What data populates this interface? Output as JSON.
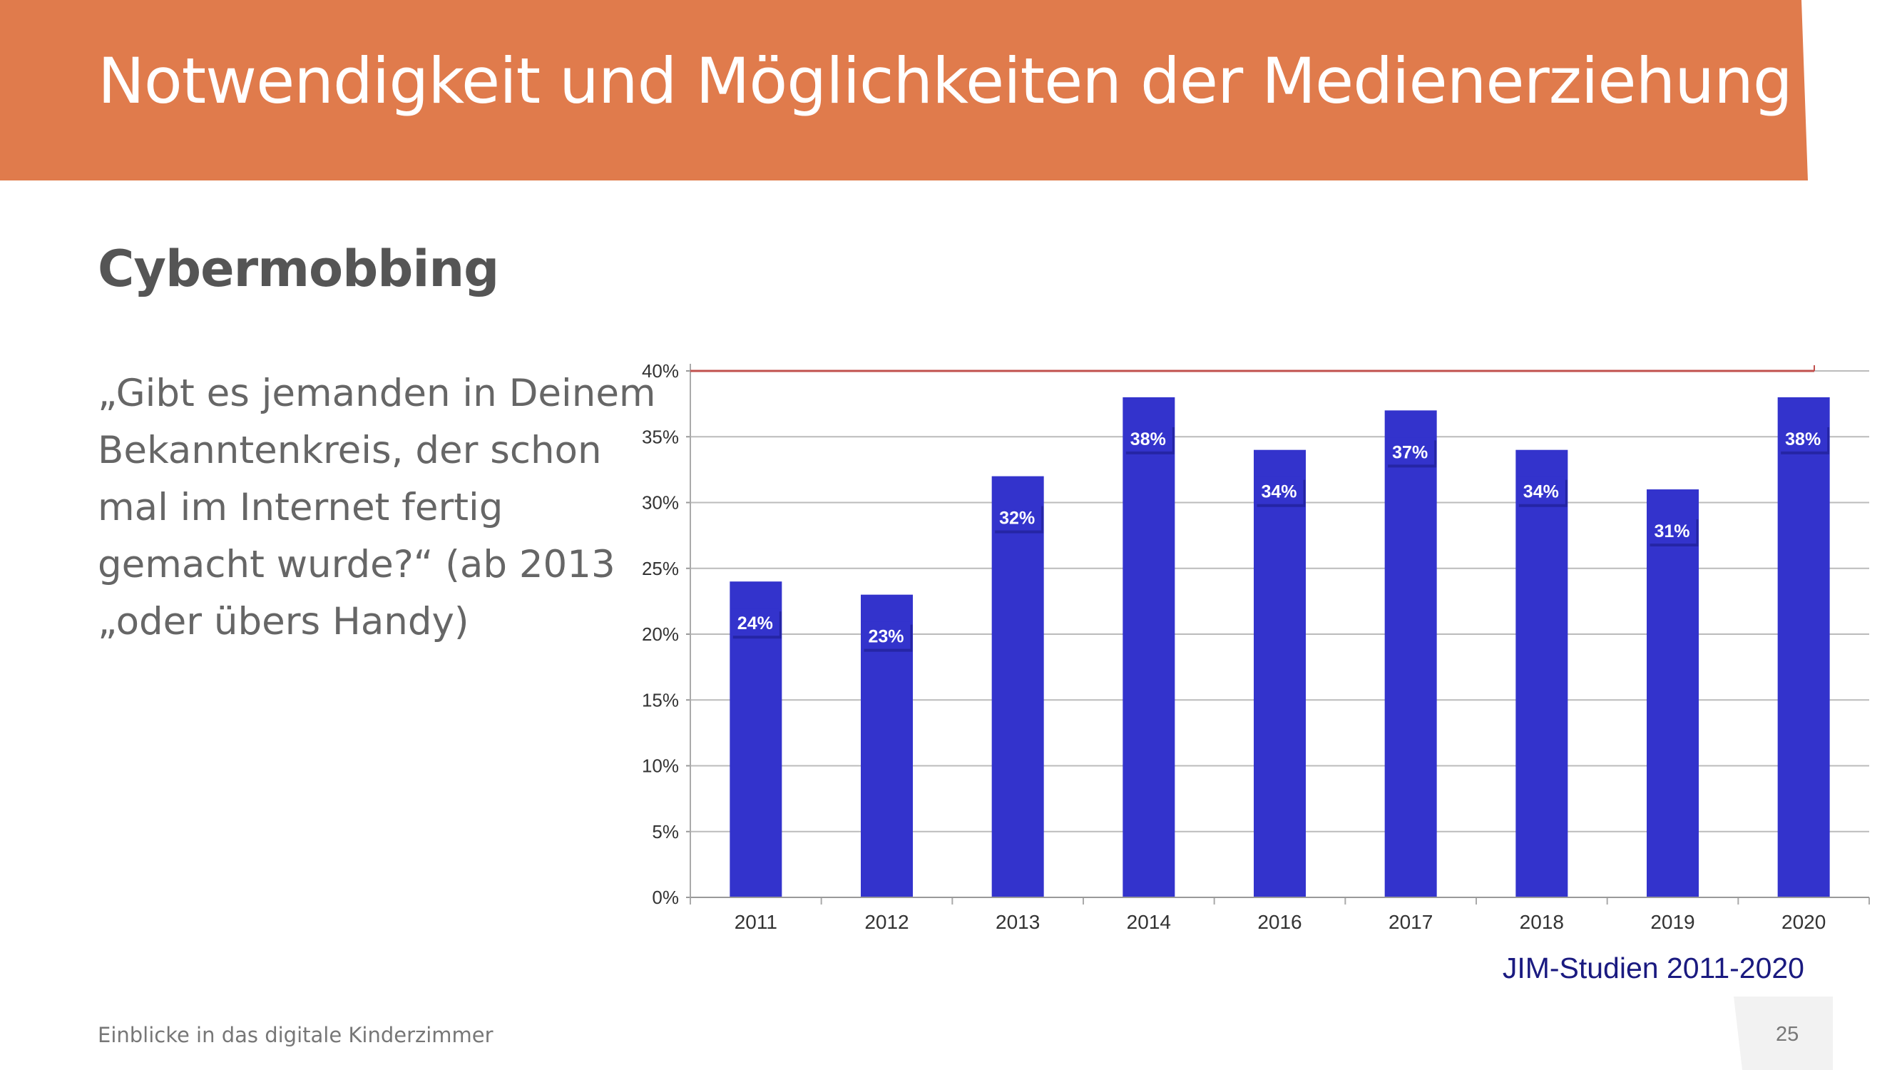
{
  "header": {
    "title": "Notwendigkeit und Möglichkeiten der Medienerziehung"
  },
  "section": {
    "title": "Cybermobbing"
  },
  "quote": {
    "lines": [
      "„Gibt es jemanden in Deinem",
      "Bekanntenkreis, der schon",
      "mal im Internet fertig",
      "gemacht wurde?“ (ab 2013",
      "„oder übers Handy)"
    ]
  },
  "chart_data": {
    "type": "bar",
    "categories": [
      "2011",
      "2012",
      "2013",
      "2014",
      "2016",
      "2017",
      "2018",
      "2019",
      "2020"
    ],
    "values": [
      24,
      23,
      32,
      38,
      34,
      37,
      34,
      31,
      38
    ],
    "data_labels": [
      "24%",
      "23%",
      "32%",
      "38%",
      "34%",
      "37%",
      "34%",
      "31%",
      "38%"
    ],
    "ylim": [
      0,
      40
    ],
    "yticks": [
      "0%",
      "5%",
      "10%",
      "15%",
      "20%",
      "25%",
      "30%",
      "35%",
      "40%"
    ],
    "grid": true,
    "bar_color": "#3333CC",
    "reference_line": {
      "value": 40,
      "color": "#C0504D"
    },
    "source": "JIM-Studien 2011-2020"
  },
  "footer": {
    "text": "Einblicke in das digitale Kinderzimmer",
    "page": "25"
  },
  "colors": {
    "header": "#E07B4C"
  }
}
